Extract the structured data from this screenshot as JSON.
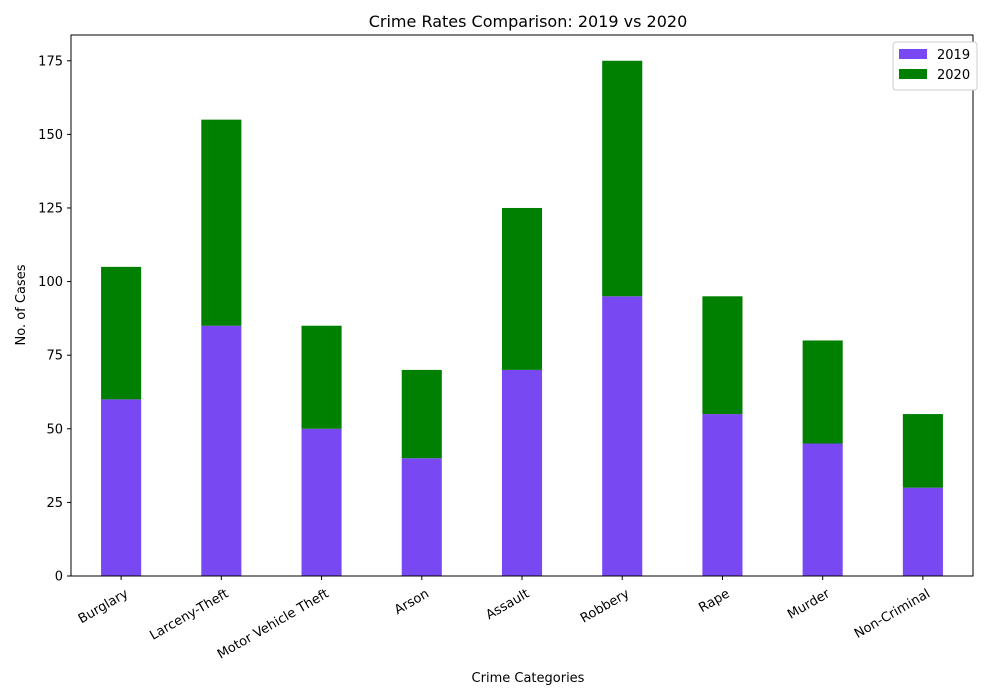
{
  "chart_data": {
    "type": "bar",
    "stacked": true,
    "title": "Crime Rates Comparison: 2019 vs 2020",
    "xlabel": "Crime Categories",
    "ylabel": "No. of Cases",
    "categories": [
      "Burglary",
      "Larceny-Theft",
      "Motor Vehicle Theft",
      "Arson",
      "Assault",
      "Robbery",
      "Rape",
      "Murder",
      "Non-Criminal"
    ],
    "series": [
      {
        "name": "2019",
        "color": "#7849f3",
        "values": [
          60,
          85,
          50,
          40,
          70,
          95,
          55,
          45,
          30
        ]
      },
      {
        "name": "2020",
        "color": "#008000",
        "values": [
          45,
          70,
          35,
          30,
          55,
          80,
          40,
          35,
          25
        ]
      }
    ],
    "ylim": [
      0,
      183.75
    ],
    "yticks": [
      0,
      25,
      50,
      75,
      100,
      125,
      150,
      175
    ],
    "grid": false,
    "legend_position": "top-right"
  }
}
